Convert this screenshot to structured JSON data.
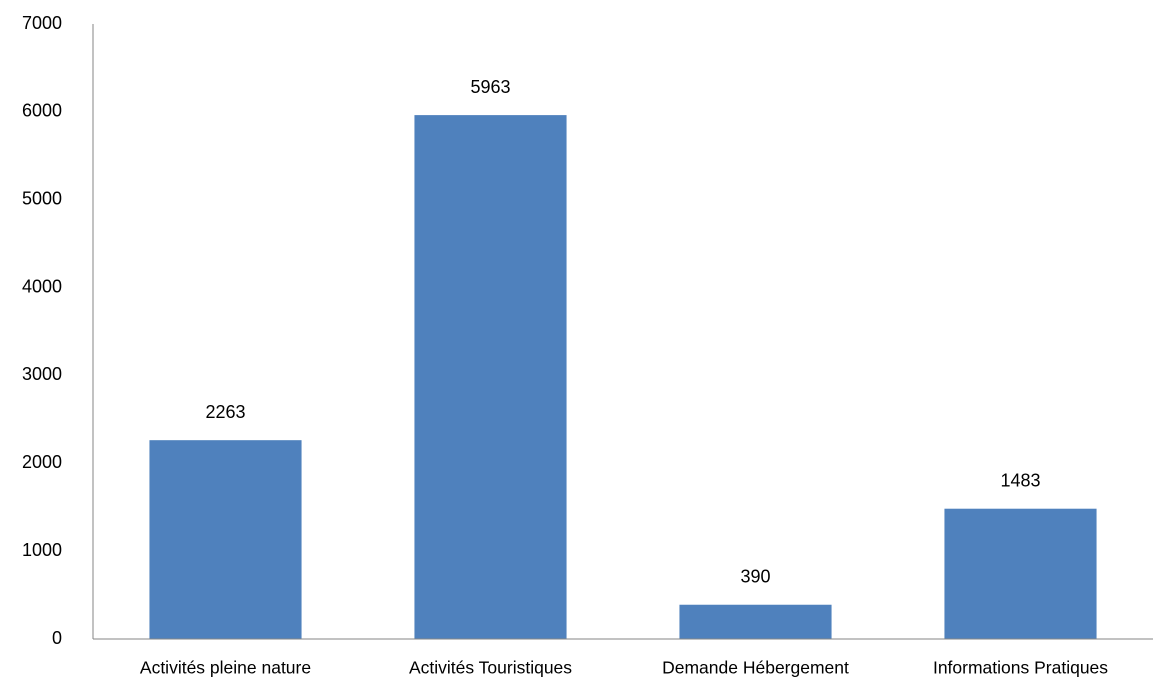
{
  "chart_data": {
    "type": "bar",
    "categories": [
      "Activités pleine nature",
      "Activités Touristiques",
      "Demande Hébergement",
      "Informations Pratiques"
    ],
    "values": [
      2263,
      5963,
      390,
      1483
    ],
    "color": "#4f81bd",
    "ylim": [
      0,
      7000
    ],
    "yticks": [
      0,
      1000,
      2000,
      3000,
      4000,
      5000,
      6000,
      7000
    ],
    "grid": false
  }
}
